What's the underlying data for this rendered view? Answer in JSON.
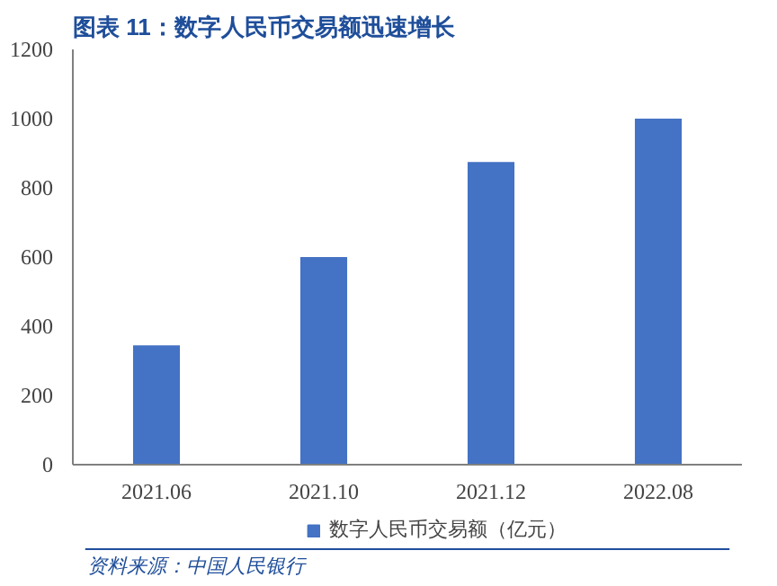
{
  "chart_data": {
    "type": "bar",
    "title": "图表 11：数字人民币交易额迅速增长",
    "categories": [
      "2021.06",
      "2021.10",
      "2021.12",
      "2022.08"
    ],
    "series": [
      {
        "name": "数字人民币交易额（亿元）",
        "color": "#4472c4",
        "values": [
          345,
          600,
          875,
          1000
        ]
      }
    ],
    "ylim": [
      0,
      1200
    ],
    "yticks": [
      0,
      200,
      400,
      600,
      800,
      1000,
      1200
    ],
    "grid": false,
    "legend": "bottom",
    "annotations": [
      "资料来源：中国人民银行"
    ]
  }
}
